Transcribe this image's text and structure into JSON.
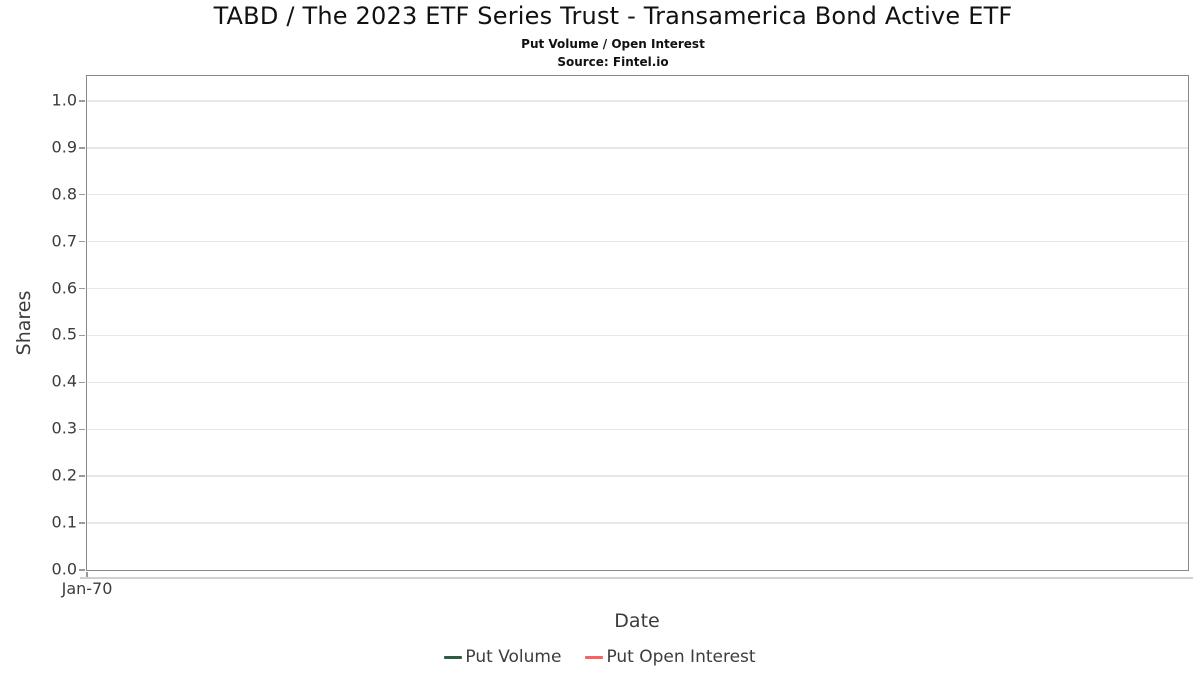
{
  "header": {
    "title": "TABD / The 2023 ETF Series Trust - Transamerica Bond Active ETF",
    "subtitle": "Put Volume / Open Interest",
    "source": "Source: Fintel.io"
  },
  "chart_data": {
    "type": "line",
    "title": "TABD / The 2023 ETF Series Trust - Transamerica Bond Active ETF",
    "subtitle": "Put Volume / Open Interest",
    "source": "Source: Fintel.io",
    "xlabel": "Date",
    "ylabel": "Shares",
    "ylim": [
      0.0,
      1.053
    ],
    "ytick_values": [
      0.0,
      0.1,
      0.2,
      0.3,
      0.4,
      0.5,
      0.6,
      0.7,
      0.8,
      0.9,
      1.0
    ],
    "ytick_labels": [
      "0.0",
      "0.1",
      "0.2",
      "0.3",
      "0.4",
      "0.5",
      "0.6",
      "0.7",
      "0.8",
      "0.9",
      "1.0"
    ],
    "xticks": [
      {
        "label": "Jan-70",
        "position": 0.0
      }
    ],
    "grid": "horizontal-only",
    "legend_position": "bottom-center",
    "series": [
      {
        "name": "Put Volume",
        "color": "#2d5c3f",
        "x": [],
        "values": []
      },
      {
        "name": "Put Open Interest",
        "color": "#fb6161",
        "x": [],
        "values": []
      }
    ],
    "colors": {
      "grid": "#e8e8e8",
      "plot_border": "#878787",
      "tick_text": "#3c3c3c",
      "axis_baseline": "#d0d0d0"
    }
  }
}
